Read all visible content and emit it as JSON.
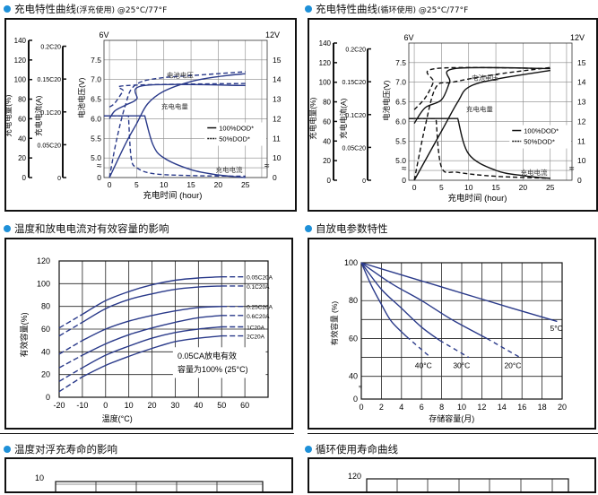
{
  "sections": {
    "float_charge": {
      "title": "充电特性曲线",
      "subtitle": "(浮充使用) @25°C/77°F"
    },
    "cycle_charge": {
      "title": "充电特性曲线",
      "subtitle": "(循环使用) @25°C/77°F"
    },
    "temp_capacity": {
      "title": "温度和放电电流对有效容量的影响"
    },
    "self_discharge": {
      "title": "自放电参数特性"
    },
    "float_life": {
      "title": "温度对浮充寿命的影响"
    },
    "cycle_life": {
      "title": "循环使用寿命曲线"
    }
  },
  "colors": {
    "accent_dot": "#1e90d8",
    "curve_blue": "#2a3a8a",
    "curve_black": "#111111",
    "grid": "#888888"
  },
  "chart_data": [
    {
      "id": "float_charge",
      "type": "line",
      "title": "充电特性曲线(浮充使用) @25°C/77°F",
      "xlabel": "充电时间 (hour)",
      "x_ticks": [
        0,
        5,
        10,
        15,
        20,
        25
      ],
      "axes": {
        "capacity_pct": {
          "label": "充电电量(%)",
          "ticks": [
            0,
            20,
            40,
            60,
            80,
            100,
            120,
            140
          ]
        },
        "current": {
          "label": "充电电流(A)",
          "ticks": [
            "0",
            "0.05C20",
            "0.1C20",
            "0.15C20",
            "0.2C20"
          ]
        },
        "voltage_6v": {
          "label": "电池电压(V)",
          "header": "6V",
          "ticks": [
            "0",
            "5.0",
            "5.5",
            "6.0",
            "6.5",
            "7.0",
            "7.5"
          ]
        },
        "voltage_12v": {
          "header": "12V",
          "ticks": [
            "0",
            "10",
            "11",
            "12",
            "13",
            "14",
            "15"
          ]
        }
      },
      "legend": [
        "100%DOD*",
        "50%DOD*"
      ],
      "annotations": [
        "电池电压",
        "充电电量",
        "充电电流"
      ],
      "series": [
        {
          "name": "电池电压 100%DOD",
          "style": "solid",
          "x": [
            0,
            1,
            3,
            5,
            6.5,
            25
          ],
          "y_voltage_6v": [
            6.0,
            6.2,
            6.35,
            6.5,
            6.85,
            6.85
          ]
        },
        {
          "name": "电池电压 50%DOD",
          "style": "dashed",
          "x": [
            0,
            1,
            2.5,
            3.5,
            25
          ],
          "y_voltage_6v": [
            6.3,
            6.4,
            6.7,
            6.85,
            6.9
          ]
        },
        {
          "name": "充电电量 100%DOD",
          "style": "solid",
          "x": [
            0,
            3,
            5,
            7,
            10,
            15,
            20,
            25
          ],
          "y_pct": [
            0,
            35,
            55,
            75,
            88,
            98,
            103,
            106
          ]
        },
        {
          "name": "充电电量 50%DOD",
          "style": "dashed",
          "x": [
            0,
            1,
            2,
            3,
            4,
            6,
            10,
            15,
            25
          ],
          "y_pct": [
            0,
            30,
            55,
            75,
            90,
            98,
            102,
            104,
            108
          ]
        },
        {
          "name": "充电电流 100%DOD",
          "style": "solid",
          "x": [
            -1,
            6.5,
            8,
            10,
            15,
            20,
            25
          ],
          "y_current_C20": [
            0.094,
            0.094,
            0.05,
            0.03,
            0.012,
            0.004,
            0.0
          ]
        },
        {
          "name": "充电电流 50%DOD",
          "style": "dashed",
          "x": [
            -1,
            3.5,
            4,
            5,
            8,
            15,
            25
          ],
          "y_current_C20": [
            0.094,
            0.094,
            0.03,
            0.015,
            0.006,
            0.003,
            0.002
          ]
        }
      ]
    },
    {
      "id": "cycle_charge",
      "type": "line",
      "title": "充电特性曲线(循环使用) @25°C/77°F",
      "xlabel": "充电时间 (hour)",
      "x_ticks": [
        0,
        5,
        10,
        15,
        20,
        25
      ],
      "axes": {
        "capacity_pct": {
          "label": "充电电量(%)",
          "ticks": [
            0,
            20,
            40,
            60,
            80,
            100,
            120,
            140
          ]
        },
        "current": {
          "label": "充电电流(A)",
          "ticks": [
            "0",
            "0.05C20",
            "0.1C20",
            "0.15C20",
            "0.2C20"
          ]
        },
        "voltage_6v": {
          "label": "电池电压(V)",
          "header": "6V",
          "ticks": [
            "0",
            "5.0",
            "5.5",
            "6.0",
            "6.5",
            "7.0",
            "7.5"
          ]
        },
        "voltage_12v": {
          "header": "12V",
          "ticks": [
            "0",
            "10",
            "11",
            "12",
            "13",
            "14",
            "15"
          ]
        }
      },
      "legend": [
        "100%DOD*",
        "50%DOD*"
      ],
      "annotations": [
        "电池电压",
        "充电电量",
        "充电电流"
      ],
      "series": [
        {
          "name": "电池电压 100%DOD",
          "style": "solid",
          "x": [
            0,
            2,
            5,
            6.5,
            7.5,
            25
          ],
          "y_voltage_6v": [
            5.95,
            6.35,
            6.55,
            7.0,
            7.35,
            7.35
          ]
        },
        {
          "name": "电池电压 50%DOD",
          "style": "dashed",
          "x": [
            0,
            2,
            3.5,
            4,
            25
          ],
          "y_voltage_6v": [
            6.3,
            6.6,
            7.0,
            7.35,
            7.35
          ]
        },
        {
          "name": "充电电量 100%DOD",
          "style": "solid",
          "x": [
            0,
            5,
            8,
            10,
            15,
            25
          ],
          "y_pct": [
            0,
            50,
            80,
            95,
            103,
            112
          ]
        },
        {
          "name": "充电电量 50%DOD",
          "style": "dashed",
          "x": [
            0,
            2,
            4,
            7,
            15,
            25
          ],
          "y_pct": [
            0,
            55,
            95,
            100,
            108,
            115
          ]
        },
        {
          "name": "充电电流 100%DOD",
          "style": "solid",
          "x": [
            -1,
            8,
            10,
            15,
            20,
            25
          ],
          "y_current_C20": [
            0.094,
            0.094,
            0.04,
            0.015,
            0.007,
            0.003
          ]
        },
        {
          "name": "充电电流 50%DOD",
          "style": "dashed",
          "x": [
            -1,
            4,
            5,
            8,
            15,
            25
          ],
          "y_current_C20": [
            0.094,
            0.094,
            0.02,
            0.012,
            0.006,
            0.003
          ]
        }
      ]
    },
    {
      "id": "temp_capacity",
      "type": "line",
      "title": "温度和放电电流对有效容量的影响",
      "xlabel": "温度(°C)",
      "ylabel": "有效容量(%)",
      "x_ticks": [
        -20,
        -10,
        0,
        10,
        20,
        30,
        40,
        50,
        60
      ],
      "y_ticks": [
        0,
        20,
        40,
        60,
        80,
        100,
        120
      ],
      "xlim": [
        -20,
        70
      ],
      "ylim": [
        0,
        120
      ],
      "grid": true,
      "annotation": [
        "0.05CA放电有效",
        "容量为100% (25°C)"
      ],
      "x": [
        -20,
        -10,
        0,
        10,
        20,
        30,
        40,
        50,
        60
      ],
      "series": [
        {
          "name": "0.05C20A",
          "values": [
            61,
            73,
            85,
            93,
            99,
            103,
            105,
            106,
            106
          ]
        },
        {
          "name": "0.1C20A",
          "values": [
            54,
            66,
            78,
            86,
            91,
            95,
            97,
            98,
            98
          ]
        },
        {
          "name": "0.25C20A",
          "values": [
            38,
            50,
            60,
            67,
            72,
            76,
            79,
            80,
            80
          ]
        },
        {
          "name": "0.6C20A",
          "values": [
            26,
            37,
            47,
            55,
            61,
            66,
            70,
            72,
            72
          ]
        },
        {
          "name": "1C20A",
          "values": [
            14,
            26,
            37,
            45,
            52,
            57,
            60,
            62,
            62
          ]
        },
        {
          "name": "2C20A",
          "values": [
            5,
            18,
            28,
            36,
            43,
            49,
            52,
            54,
            54
          ]
        }
      ]
    },
    {
      "id": "self_discharge",
      "type": "line",
      "title": "自放电参数特性",
      "xlabel": "存储容量(月)",
      "ylabel": "有效容量 (%)",
      "x_ticks": [
        0,
        2,
        4,
        6,
        8,
        10,
        12,
        14,
        16,
        18,
        20
      ],
      "y_ticks": [
        0,
        40,
        60,
        80,
        100
      ],
      "xlim": [
        0,
        20
      ],
      "ylim": [
        35,
        100
      ],
      "grid": true,
      "series": [
        {
          "name": "5°C",
          "x": [
            0,
            5,
            10,
            15,
            19.5
          ],
          "values": [
            100,
            92,
            84,
            76,
            69
          ]
        },
        {
          "name": "20°C",
          "x": [
            0,
            3,
            6,
            9,
            12.5,
            15.8
          ],
          "values": [
            100,
            89,
            80,
            70,
            60,
            50
          ]
        },
        {
          "name": "30°C",
          "x": [
            0,
            2,
            4,
            6,
            7.8,
            10.7
          ],
          "values": [
            100,
            86,
            76,
            66,
            59,
            50
          ]
        },
        {
          "name": "40°C",
          "x": [
            0,
            1,
            2,
            3,
            4.5,
            6.9
          ],
          "values": [
            100,
            88,
            78,
            69,
            61,
            50
          ]
        }
      ]
    },
    {
      "id": "float_life",
      "type": "line",
      "title": "温度对浮充寿命的影响",
      "y_ticks_visible": [
        10
      ]
    },
    {
      "id": "cycle_life",
      "type": "line",
      "title": "循环使用寿命曲线",
      "y_ticks_visible": [
        120
      ]
    }
  ]
}
